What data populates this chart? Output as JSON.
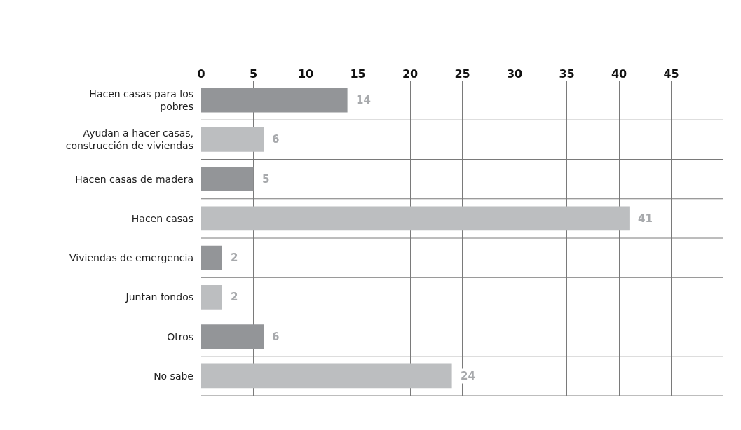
{
  "chart_data": {
    "type": "bar",
    "orientation": "horizontal",
    "categories": [
      "Hacen casas para los pobres",
      "Ayudan a hacer casas, construcción de viviendas",
      "Hacen casas de madera",
      "Hacen casas",
      "Viviendas de emergencia",
      "Juntan fondos",
      "Otros",
      "No sabe"
    ],
    "values": [
      14,
      6,
      5,
      41,
      2,
      2,
      6,
      24
    ],
    "colors": [
      "#939598",
      "#bcbec0",
      "#939598",
      "#bcbec0",
      "#939598",
      "#bcbec0",
      "#939598",
      "#bcbec0"
    ],
    "data_labels": true,
    "xlim": [
      0,
      50
    ],
    "xticks": [
      0,
      5,
      10,
      15,
      20,
      25,
      30,
      35,
      40,
      45
    ],
    "grid": true
  }
}
